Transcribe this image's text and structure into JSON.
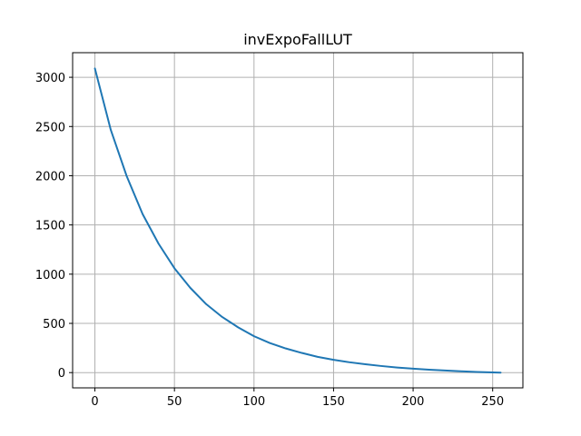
{
  "chart_data": {
    "type": "line",
    "title": "invExpoFallLUT",
    "xlabel": "",
    "ylabel": "",
    "xlim": [
      -14,
      269
    ],
    "ylim": [
      -155,
      3250
    ],
    "xticks": [
      0,
      50,
      100,
      150,
      200,
      250
    ],
    "yticks": [
      0,
      500,
      1000,
      1500,
      2000,
      2500,
      3000
    ],
    "xtick_labels": [
      "0",
      "50",
      "100",
      "150",
      "200",
      "250"
    ],
    "ytick_labels": [
      "0",
      "500",
      "1000",
      "1500",
      "2000",
      "2500",
      "3000"
    ],
    "grid": true,
    "legend": "none",
    "series": [
      {
        "color": "#1f77b4",
        "x": [
          0,
          10,
          20,
          30,
          40,
          50,
          60,
          70,
          80,
          90,
          100,
          110,
          120,
          130,
          140,
          150,
          160,
          170,
          180,
          190,
          200,
          210,
          220,
          230,
          240,
          250,
          255
        ],
        "y": [
          3090,
          2465,
          1995,
          1610,
          1310,
          1060,
          860,
          695,
          565,
          460,
          370,
          300,
          245,
          200,
          160,
          130,
          105,
          85,
          67,
          52,
          40,
          30,
          21,
          13,
          7,
          2,
          0
        ]
      }
    ]
  }
}
